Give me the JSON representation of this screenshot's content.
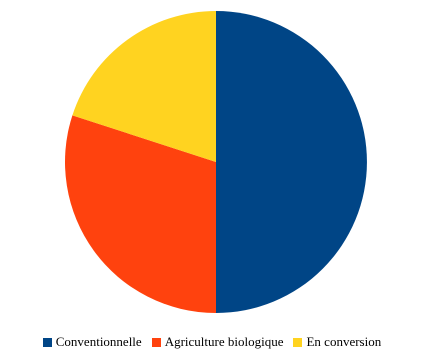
{
  "chart_data": {
    "type": "pie",
    "title": "",
    "categories": [
      "Conventionnelle",
      "Agriculture biologique",
      "En conversion"
    ],
    "values": [
      50,
      30,
      20
    ],
    "colors": [
      "#004586",
      "#ff420e",
      "#ffd320"
    ],
    "start_angle_deg": 0,
    "direction": "clockwise",
    "legend_position": "bottom"
  }
}
